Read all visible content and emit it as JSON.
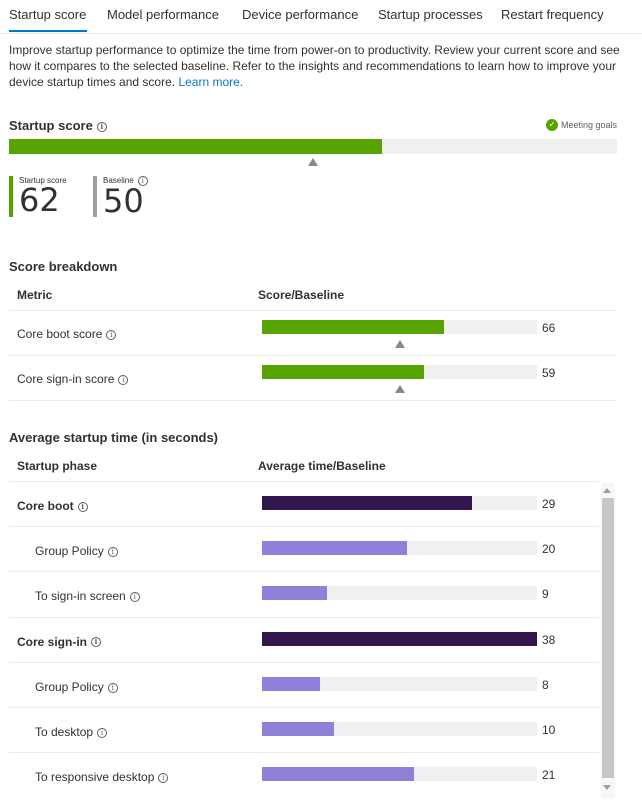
{
  "tabs": [
    {
      "label": "Startup score",
      "active": true
    },
    {
      "label": "Model performance"
    },
    {
      "label": "Device performance"
    },
    {
      "label": "Startup processes"
    },
    {
      "label": "Restart frequency"
    }
  ],
  "intro": {
    "text": "Improve startup performance to optimize the time from power-on to productivity. Review your current score and see how it compares to the selected baseline. Refer to the insights and recommendations to learn how to improve your device startup times and score. ",
    "link": "Learn more."
  },
  "startup_score": {
    "title": "Startup score",
    "status": "Meeting goals",
    "score_label": "Startup score",
    "score_value": "62",
    "baseline_label": "Baseline",
    "baseline_value": "50",
    "score_fraction": 0.62,
    "baseline_fraction": 0.5,
    "colors": {
      "score": "#57a300",
      "baseline": "#a19f9d"
    }
  },
  "score_breakdown": {
    "title": "Score breakdown",
    "headers": {
      "metric": "Metric",
      "score": "Score/Baseline"
    },
    "rows": [
      {
        "label": "Core boot score",
        "value": "66",
        "fraction": 0.66,
        "baseline_fraction": 0.5
      },
      {
        "label": "Core sign-in score",
        "value": "59",
        "fraction": 0.59,
        "baseline_fraction": 0.5
      }
    ]
  },
  "avg_startup": {
    "title": "Average startup time (in seconds)",
    "headers": {
      "phase": "Startup phase",
      "time": "Average time/Baseline"
    },
    "max": 38,
    "colors": {
      "parent": "#32174d",
      "child": "#8f80d9"
    },
    "rows": [
      {
        "label": "Core boot",
        "value": "29",
        "num": 29,
        "level": 0
      },
      {
        "label": "Group Policy",
        "value": "20",
        "num": 20,
        "level": 1
      },
      {
        "label": "To sign-in screen",
        "value": "9",
        "num": 9,
        "level": 1
      },
      {
        "label": "Core sign-in",
        "value": "38",
        "num": 38,
        "level": 0
      },
      {
        "label": "Group Policy",
        "value": "8",
        "num": 8,
        "level": 1
      },
      {
        "label": "To desktop",
        "value": "10",
        "num": 10,
        "level": 1
      },
      {
        "label": "To responsive desktop",
        "value": "21",
        "num": 21,
        "level": 1
      }
    ]
  }
}
